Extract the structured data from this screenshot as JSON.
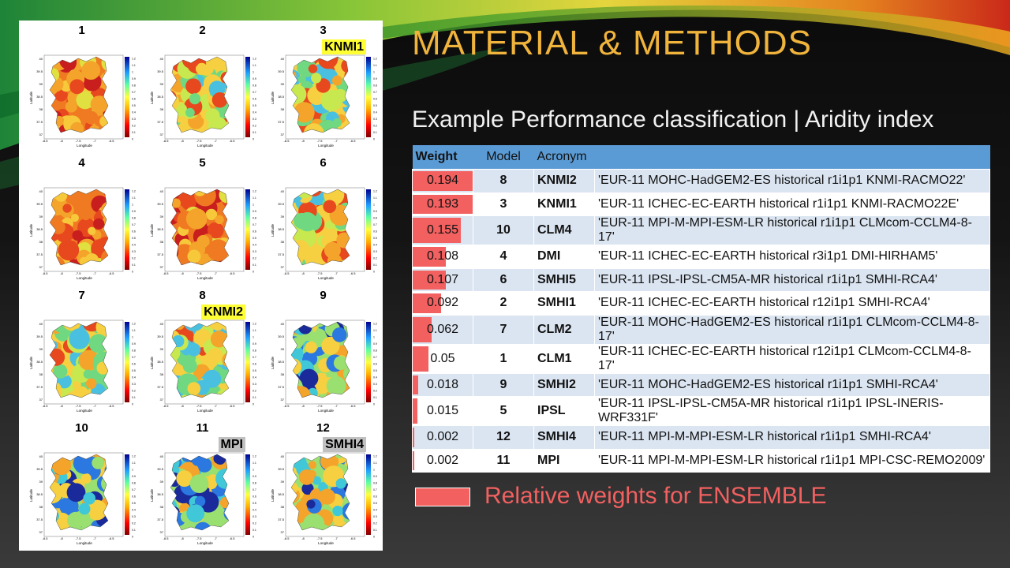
{
  "slide": {
    "title": "MATERIAL & METHODS",
    "subtitle": "Example Performance classification | Aridity index"
  },
  "maps": [
    {
      "n": "1",
      "tag": "",
      "tag_color": ""
    },
    {
      "n": "2",
      "tag": "",
      "tag_color": ""
    },
    {
      "n": "3",
      "tag": "KNMI1",
      "tag_color": "#ffff33"
    },
    {
      "n": "4",
      "tag": "",
      "tag_color": ""
    },
    {
      "n": "5",
      "tag": "",
      "tag_color": ""
    },
    {
      "n": "6",
      "tag": "",
      "tag_color": ""
    },
    {
      "n": "7",
      "tag": "",
      "tag_color": ""
    },
    {
      "n": "8",
      "tag": "KNMI2",
      "tag_color": "#ffff33"
    },
    {
      "n": "9",
      "tag": "",
      "tag_color": ""
    },
    {
      "n": "10",
      "tag": "",
      "tag_color": ""
    },
    {
      "n": "11",
      "tag": "MPI",
      "tag_color": "#c0c0c0"
    },
    {
      "n": "12",
      "tag": "SMHI4",
      "tag_color": "#c0c0c0"
    }
  ],
  "map_axes": {
    "ylabel": "Latitude",
    "xlabel": "Longitude",
    "yticks": [
      "40",
      "39.5",
      "39",
      "38.5",
      "38",
      "37.5",
      "37"
    ],
    "xticks": [
      "-8.5",
      "-8",
      "-7.5",
      "-7",
      "-6.5"
    ],
    "cticks": [
      "1.2",
      "1.1",
      "1",
      "0.9",
      "0.8",
      "0.7",
      "0.6",
      "0.5",
      "0.4",
      "0.3",
      "0.2",
      "0.1",
      "0"
    ]
  },
  "table": {
    "headers": {
      "weight": "Weight",
      "model": "Model",
      "acronym": "Acronym",
      "name": ""
    },
    "rows": [
      {
        "weight": "0.194",
        "w": 0.194,
        "model": "8",
        "acronym": "KNMI2",
        "name": "'EUR-11 MOHC-HadGEM2-ES historical r1i1p1 KNMI-RACMO22'"
      },
      {
        "weight": "0.193",
        "w": 0.193,
        "model": "3",
        "acronym": "KNMI1",
        "name": "'EUR-11 ICHEC-EC-EARTH historical r1i1p1 KNMI-RACMO22E'"
      },
      {
        "weight": "0.155",
        "w": 0.155,
        "model": "10",
        "acronym": "CLM4",
        "name": "'EUR-11 MPI-M-MPI-ESM-LR historical r1i1p1 CLMcom-CCLM4-8-17'"
      },
      {
        "weight": "0.108",
        "w": 0.108,
        "model": "4",
        "acronym": "DMI",
        "name": "'EUR-11 ICHEC-EC-EARTH historical r3i1p1 DMI-HIRHAM5'"
      },
      {
        "weight": "0.107",
        "w": 0.107,
        "model": "6",
        "acronym": "SMHI5",
        "name": "'EUR-11 IPSL-IPSL-CM5A-MR historical r1i1p1 SMHI-RCA4'"
      },
      {
        "weight": "0.092",
        "w": 0.092,
        "model": "2",
        "acronym": "SMHI1",
        "name": "'EUR-11 ICHEC-EC-EARTH historical r12i1p1 SMHI-RCA4'"
      },
      {
        "weight": "0.062",
        "w": 0.062,
        "model": "7",
        "acronym": "CLM2",
        "name": "'EUR-11 MOHC-HadGEM2-ES historical r1i1p1 CLMcom-CCLM4-8-17'"
      },
      {
        "weight": "0.05",
        "w": 0.05,
        "model": "1",
        "acronym": "CLM1",
        "name": "'EUR-11 ICHEC-EC-EARTH historical r12i1p1 CLMcom-CCLM4-8-17'"
      },
      {
        "weight": "0.018",
        "w": 0.018,
        "model": "9",
        "acronym": "SMHI2",
        "name": "'EUR-11 MOHC-HadGEM2-ES historical r1i1p1 SMHI-RCA4'"
      },
      {
        "weight": "0.015",
        "w": 0.015,
        "model": "5",
        "acronym": "IPSL",
        "name": "'EUR-11 IPSL-IPSL-CM5A-MR historical r1i1p1 IPSL-INERIS-WRF331F'"
      },
      {
        "weight": "0.002",
        "w": 0.002,
        "model": "12",
        "acronym": "SMHI4",
        "name": "'EUR-11 MPI-M-MPI-ESM-LR historical r1i1p1 SMHI-RCA4'"
      },
      {
        "weight": "0.002",
        "w": 0.002,
        "model": "11",
        "acronym": "MPI",
        "name": "'EUR-11 MPI-M-MPI-ESM-LR historical r1i1p1 MPI-CSC-REMO2009'"
      }
    ],
    "weight_bar_color": "#f26060"
  },
  "legend": {
    "label": "Relative weights for ENSEMBLE",
    "color": "#f26060"
  },
  "colors": {
    "title": "#f0b43c",
    "header_bg": "#5b9bd5",
    "row_alt": "#dbe5f1"
  }
}
